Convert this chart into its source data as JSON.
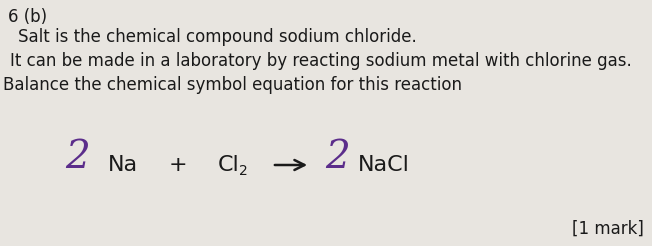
{
  "bg_color": "#e8e5e0",
  "title_label": "6 (b)",
  "line1": "Salt is the chemical compound sodium chloride.",
  "line2": "It can be made in a laboratory by reacting sodium metal with chlorine gas.",
  "line3": "Balance the chemical symbol equation for this reaction",
  "mark_label": "[1 mark]",
  "equation_color": "#5b2d8b",
  "arrow_color": "#1a1a1a",
  "text_color": "#1a1a1a",
  "body_fontsize": 12,
  "title_fontsize": 12,
  "eq_fontsize": 16,
  "coeff_fontsize": 28,
  "mark_fontsize": 12
}
